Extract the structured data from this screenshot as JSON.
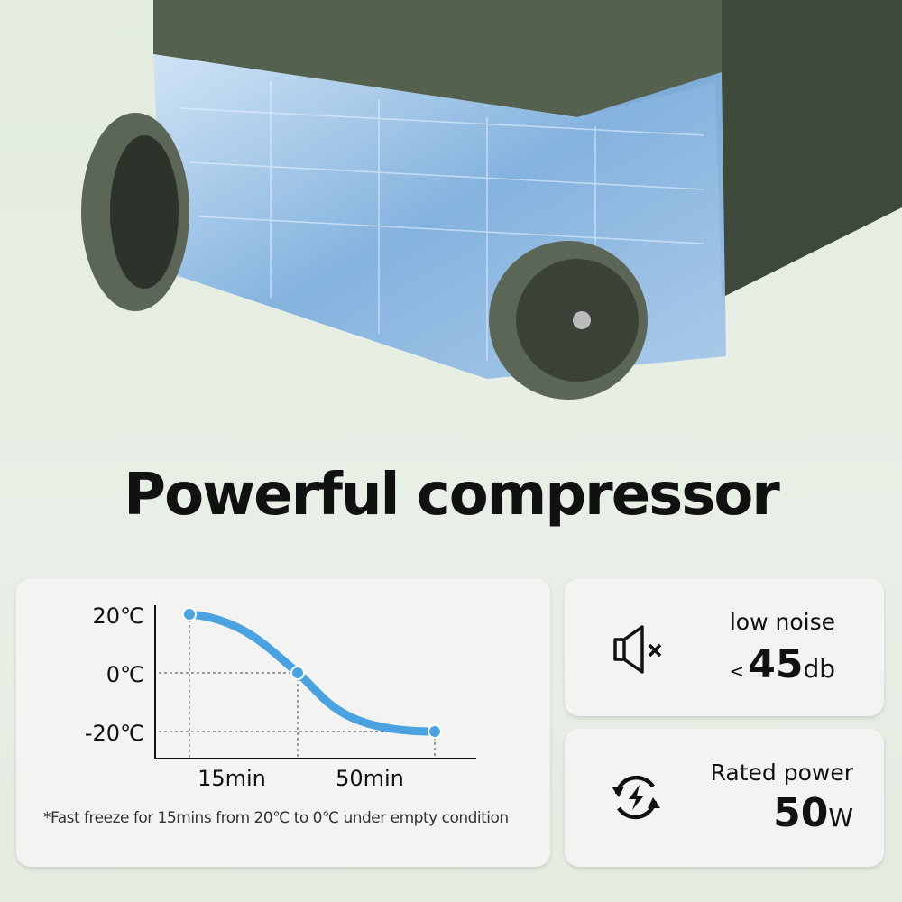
{
  "headline": "Powerful compressor",
  "colors": {
    "body_green": "#4d5a4a",
    "curve_blue": "#4aa3e0",
    "curve_teal": "#6dd3c8",
    "background": "#e6eee3"
  },
  "chart_data": {
    "type": "line",
    "y_tick_labels": [
      "20℃",
      "0℃",
      "-20℃"
    ],
    "x_tick_labels": [
      "15min",
      "50min"
    ],
    "points_y": [
      20,
      0,
      -20
    ],
    "ylim": [
      -20,
      20
    ]
  },
  "footnote": "*Fast freeze for 15mins from 20℃ to 0℃ under empty condition",
  "noise": {
    "icon": "speaker-mute-icon",
    "label": "low noise",
    "prefix": "<",
    "value": "45",
    "unit": "db"
  },
  "power": {
    "icon": "refresh-bolt-icon",
    "label": "Rated power",
    "value": "50",
    "unit": "W"
  }
}
